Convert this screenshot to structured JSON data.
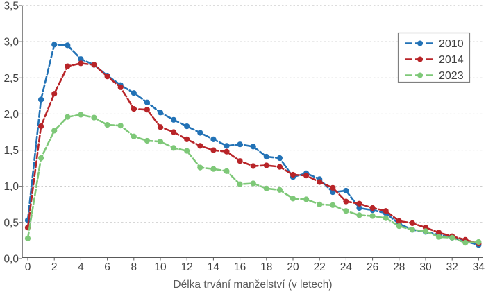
{
  "chart_data": {
    "type": "line",
    "title": "",
    "xlabel": "Délka trvání manželství (v letech)",
    "ylabel": "",
    "xlim": [
      0,
      34
    ],
    "ylim": [
      0,
      3.5
    ],
    "grid": "horizontal-dashed",
    "legend_position": "top-right",
    "x": [
      0,
      1,
      2,
      3,
      4,
      5,
      6,
      7,
      8,
      9,
      10,
      11,
      12,
      13,
      14,
      15,
      16,
      17,
      18,
      19,
      20,
      21,
      22,
      23,
      24,
      25,
      26,
      27,
      28,
      29,
      30,
      31,
      32,
      33,
      34
    ],
    "x_tick_values": [
      0,
      2,
      4,
      6,
      8,
      10,
      12,
      14,
      16,
      18,
      20,
      22,
      24,
      26,
      28,
      30,
      32,
      34
    ],
    "y_tick_labels": [
      "0,0",
      "0,5",
      "1,0",
      "1,5",
      "2,0",
      "2,5",
      "3,0",
      "3,5"
    ],
    "series": [
      {
        "name": "2010",
        "color": "#2272b6",
        "values": [
          0.53,
          2.2,
          2.96,
          2.95,
          2.76,
          2.68,
          2.53,
          2.4,
          2.29,
          2.16,
          2.02,
          1.92,
          1.83,
          1.74,
          1.65,
          1.56,
          1.58,
          1.55,
          1.41,
          1.39,
          1.13,
          1.18,
          1.1,
          0.92,
          0.94,
          0.7,
          0.67,
          0.63,
          0.48,
          0.4,
          0.37,
          0.33,
          0.29,
          0.24,
          0.19
        ]
      },
      {
        "name": "2014",
        "color": "#b82428",
        "values": [
          0.43,
          1.83,
          2.28,
          2.66,
          2.7,
          2.68,
          2.52,
          2.37,
          2.07,
          2.06,
          1.82,
          1.75,
          1.65,
          1.56,
          1.5,
          1.48,
          1.35,
          1.28,
          1.29,
          1.27,
          1.16,
          1.15,
          1.06,
          0.98,
          0.79,
          0.76,
          0.7,
          0.66,
          0.52,
          0.49,
          0.43,
          0.36,
          0.31,
          0.26,
          0.21
        ]
      },
      {
        "name": "2023",
        "color": "#7ec878",
        "values": [
          0.28,
          1.39,
          1.77,
          1.96,
          1.99,
          1.95,
          1.85,
          1.84,
          1.69,
          1.63,
          1.62,
          1.53,
          1.49,
          1.26,
          1.24,
          1.21,
          1.03,
          1.04,
          0.97,
          0.95,
          0.83,
          0.82,
          0.75,
          0.74,
          0.66,
          0.6,
          0.59,
          0.56,
          0.45,
          0.4,
          0.38,
          0.3,
          0.29,
          0.22,
          0.23
        ]
      }
    ],
    "style": {
      "gridline_color": "#c8c8c8",
      "axis_color": "#595959",
      "right_border_color": "#c0c0c0",
      "tick_label_color": "#404040",
      "axis_title_color": "#595959",
      "legend_border_color": "#7f7f7f",
      "legend_text_color": "#404040"
    }
  }
}
